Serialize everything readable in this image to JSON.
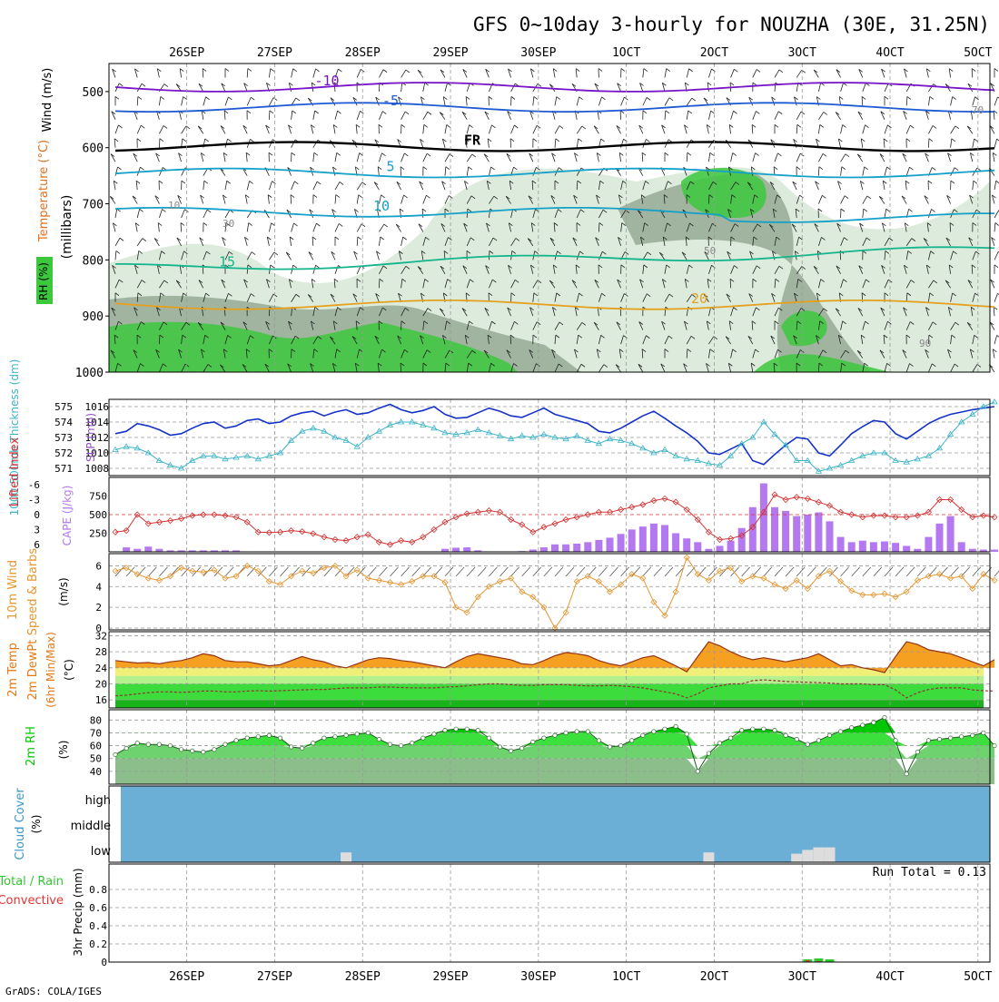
{
  "title": "GFS 0~10day 3-hourly for NOUZHA (30E, 31.25N)",
  "footer": "GrADS: COLA/IGES",
  "date_ticks": [
    "26SEP",
    "27SEP",
    "28SEP",
    "29SEP",
    "30SEP",
    "1OCT",
    "2OCT",
    "3OCT",
    "4OCT",
    "5OCT"
  ],
  "colors": {
    "rh_green": "#3cc83c",
    "rh_dark": "#a0b4a0",
    "rh_light": "#dcebdc",
    "temp_cold": "#7814c8",
    "temp_blue": "#1e5ad2",
    "temp_teal": "#14a0c8",
    "temp_green": "#14b48c",
    "temp_orange": "#e6a01e",
    "slp": "#1432c8",
    "thick": "#3cb4c8",
    "li": "#d23232",
    "cape": "#b478f0",
    "wind": "#e69632",
    "temp2m": "#e67814",
    "dew": "#963232",
    "rh2m": "#00c800",
    "cloud": "#6baed6",
    "precip_total": "#32c832",
    "precip_conv": "#e63232"
  },
  "chart_data": [
    {
      "type": "heatmap",
      "panel": "upper-air",
      "ylabels": [
        "Wind (m/s)",
        "Temperature (°C)",
        "RH (%)",
        "(millibars)"
      ],
      "yticks": [
        500,
        600,
        700,
        800,
        900,
        1000
      ],
      "ylim": [
        1000,
        450
      ],
      "legend_rh": "RH (%)",
      "isotherms": [
        {
          "label": "-10",
          "pressure": 492
        },
        {
          "label": "-5",
          "pressure": 528
        },
        {
          "label": "FR",
          "pressure": 598
        },
        {
          "label": "5",
          "pressure": 645
        },
        {
          "label": "10",
          "pressure": 715
        },
        {
          "label": "15",
          "pressure": 815
        },
        {
          "label": "20",
          "pressure": 880
        }
      ],
      "rh_contour_labels": [
        "10",
        "30",
        "50",
        "70",
        "90"
      ]
    },
    {
      "type": "line",
      "panel": "slp-thickness",
      "ylabel_left": "1000-500mb Thickness (dm)",
      "ylabel_right": "SLP (mb)",
      "thickness_ticks": [
        571,
        572,
        573,
        574,
        575
      ],
      "slp_ticks": [
        1008,
        1010,
        1012,
        1014,
        1016
      ],
      "slp": [
        1012.5,
        1012.8,
        1013.8,
        1013.5,
        1013.0,
        1012.3,
        1012.5,
        1013.2,
        1013.8,
        1014.0,
        1013.2,
        1013.5,
        1014.2,
        1014.4,
        1013.8,
        1014.0,
        1014.8,
        1015.2,
        1015.4,
        1014.8,
        1015.3,
        1015.6,
        1015.0,
        1015.2,
        1015.8,
        1016.3,
        1015.6,
        1015.2,
        1015.5,
        1016.0,
        1015.0,
        1014.5,
        1014.6,
        1015.2,
        1015.8,
        1015.4,
        1014.8,
        1014.6,
        1015.2,
        1015.8,
        1015.0,
        1014.6,
        1014.2,
        1013.8,
        1012.8,
        1012.6,
        1013.2,
        1014.0,
        1014.8,
        1015.4,
        1014.5,
        1013.5,
        1012.6,
        1011.5,
        1010.0,
        1009.8,
        1010.5,
        1011.2,
        1009.0,
        1008.5,
        1009.8,
        1011.0,
        1012.0,
        1011.8,
        1010.0,
        1009.6,
        1011.0,
        1012.5,
        1013.4,
        1014.2,
        1014.0,
        1012.5,
        1011.8,
        1012.8,
        1013.8,
        1014.5,
        1015.0,
        1015.3,
        1015.6,
        1015.8,
        1016.0
      ],
      "thickness": [
        572.2,
        572.4,
        572.3,
        572.0,
        571.5,
        571.2,
        571.0,
        571.5,
        571.8,
        571.8,
        571.6,
        571.7,
        571.8,
        571.6,
        571.8,
        572.0,
        572.8,
        573.4,
        573.6,
        573.4,
        573.0,
        572.8,
        572.4,
        573.0,
        573.4,
        573.8,
        574.0,
        574.0,
        573.8,
        573.6,
        573.3,
        573.2,
        573.3,
        573.5,
        573.3,
        573.1,
        572.9,
        573.1,
        573.0,
        573.2,
        573.0,
        572.9,
        573.1,
        572.8,
        572.6,
        572.9,
        572.8,
        572.6,
        572.3,
        572.0,
        572.2,
        571.8,
        571.6,
        571.5,
        571.3,
        571.2,
        571.8,
        572.6,
        573.0,
        574.0,
        573.2,
        572.5,
        571.5,
        571.5,
        570.8,
        571.0,
        571.2,
        571.5,
        571.8,
        572.0,
        572.0,
        571.5,
        571.4,
        571.6,
        571.8,
        572.3,
        573.2,
        574.0,
        574.5,
        575.0,
        575.3
      ]
    },
    {
      "type": "bar",
      "panel": "lifted-index-cape",
      "ylabel_left": "Lifted Index",
      "ylabel_right": "CAPE (J/kg)",
      "li_ticks": [
        -6,
        -3,
        0,
        3,
        6
      ],
      "cape_ticks": [
        250,
        500,
        750
      ],
      "lifted_index": [
        3.5,
        3.2,
        0.0,
        1.8,
        1.5,
        1.2,
        0.8,
        0.2,
        0.0,
        0.0,
        0.2,
        0.5,
        1.5,
        3.5,
        3.6,
        3.5,
        3.2,
        3.4,
        3.8,
        4.5,
        5.0,
        5.2,
        4.5,
        4.0,
        5.5,
        6.0,
        5.2,
        5.5,
        4.5,
        3.0,
        1.5,
        0.5,
        -0.2,
        -0.5,
        -0.8,
        -0.5,
        1.0,
        2.0,
        3.5,
        2.5,
        1.8,
        1.0,
        0.5,
        0.0,
        -0.5,
        -0.5,
        -1.0,
        -1.5,
        -2.0,
        -2.8,
        -3.2,
        -2.5,
        -1.0,
        1.0,
        3.5,
        5.0,
        4.8,
        4.2,
        2.5,
        -0.5,
        -4.0,
        -3.0,
        -3.5,
        -3.2,
        -2.5,
        -1.8,
        -0.5,
        0.0,
        0.5,
        0.2,
        0.2,
        0.5,
        0.5,
        0.2,
        -0.5,
        -3.0,
        -3.0,
        -1.0,
        0.5,
        0.2,
        0.5
      ],
      "cape": [
        0,
        60,
        40,
        70,
        40,
        20,
        20,
        20,
        20,
        20,
        20,
        20,
        0,
        0,
        0,
        0,
        0,
        0,
        0,
        0,
        0,
        0,
        0,
        0,
        0,
        0,
        0,
        0,
        0,
        0,
        40,
        55,
        60,
        20,
        0,
        0,
        0,
        10,
        30,
        60,
        100,
        100,
        110,
        130,
        160,
        190,
        240,
        300,
        340,
        380,
        360,
        250,
        180,
        130,
        40,
        80,
        150,
        320,
        600,
        920,
        600,
        550,
        480,
        500,
        530,
        410,
        200,
        130,
        150,
        130,
        140,
        120,
        80,
        40,
        200,
        380,
        480,
        130,
        40,
        30,
        30
      ]
    },
    {
      "type": "line",
      "panel": "10m-wind",
      "ylabel": "10m Wind Speed & Barbs (m/s)",
      "yticks": [
        0,
        2,
        4,
        6
      ],
      "ylim": [
        0,
        7
      ],
      "wind_speed": [
        5.5,
        5.8,
        5.2,
        4.8,
        4.6,
        5.0,
        5.8,
        5.5,
        5.4,
        5.6,
        4.8,
        5.0,
        6.0,
        5.5,
        4.5,
        4.2,
        5.0,
        5.5,
        5.3,
        5.8,
        6.0,
        5.0,
        5.6,
        4.8,
        4.6,
        4.4,
        4.2,
        4.5,
        5.0,
        5.0,
        4.4,
        2.0,
        1.5,
        3.0,
        4.0,
        4.5,
        4.8,
        3.5,
        3.0,
        2.0,
        0.0,
        1.5,
        4.5,
        5.0,
        4.5,
        3.5,
        4.2,
        5.2,
        4.8,
        2.5,
        1.2,
        3.5,
        6.8,
        5.2,
        4.6,
        5.5,
        5.8,
        4.5,
        5.0,
        4.8,
        4.2,
        3.8,
        4.6,
        3.8,
        5.0,
        5.5,
        4.5,
        3.6,
        3.2,
        3.2,
        3.3,
        3.0,
        3.5,
        4.6,
        5.0,
        5.2,
        4.8,
        5.0,
        3.8,
        5.2,
        4.6
      ]
    },
    {
      "type": "area",
      "panel": "2m-temp",
      "ylabel": "2m Temp 2m DewPt (6hr Min/Max) (°C)",
      "yticks": [
        16,
        20,
        24,
        28,
        32
      ],
      "ylim": [
        14,
        33
      ],
      "temp2m": [
        25.8,
        25.5,
        25.2,
        25.3,
        25.0,
        25.5,
        25.8,
        26.5,
        27.5,
        27.0,
        25.8,
        25.5,
        25.5,
        25.0,
        24.5,
        24.8,
        25.8,
        26.8,
        26.0,
        25.5,
        24.5,
        24.0,
        25.0,
        26.0,
        26.5,
        26.3,
        25.8,
        25.5,
        25.0,
        24.5,
        24.0,
        25.5,
        26.8,
        27.5,
        27.0,
        26.5,
        26.0,
        25.0,
        24.8,
        25.8,
        27.0,
        27.8,
        27.5,
        27.0,
        25.8,
        25.0,
        24.5,
        25.5,
        26.5,
        27.0,
        25.8,
        24.5,
        23.0,
        26.8,
        30.5,
        29.5,
        28.0,
        26.8,
        26.0,
        26.5,
        26.0,
        25.5,
        26.0,
        26.5,
        27.5,
        26.0,
        24.5,
        24.8,
        24.0,
        23.5,
        22.8,
        26.8,
        30.5,
        29.8,
        28.5,
        28.0,
        27.5,
        26.5,
        25.5,
        24.5,
        26.0
      ],
      "dewpoint": [
        17.0,
        17.2,
        17.5,
        17.8,
        18.0,
        18.0,
        17.9,
        18.0,
        18.2,
        18.2,
        18.0,
        18.0,
        18.2,
        18.3,
        18.2,
        18.3,
        18.4,
        18.5,
        18.6,
        18.6,
        18.8,
        19.0,
        19.0,
        19.0,
        19.2,
        19.2,
        19.1,
        19.0,
        19.0,
        19.0,
        19.2,
        19.3,
        19.5,
        19.8,
        20.0,
        20.0,
        19.8,
        19.6,
        19.6,
        19.8,
        19.8,
        19.8,
        19.6,
        19.5,
        19.5,
        19.6,
        19.5,
        19.3,
        19.0,
        18.5,
        18.0,
        17.5,
        16.5,
        17.5,
        19.0,
        19.5,
        20.0,
        20.0,
        20.8,
        21.0,
        20.8,
        20.6,
        20.5,
        20.4,
        20.3,
        20.2,
        20.0,
        20.0,
        20.0,
        19.8,
        19.8,
        18.5,
        16.5,
        17.8,
        18.6,
        19.0,
        19.0,
        19.0,
        18.5,
        18.3,
        18.2
      ]
    },
    {
      "type": "area",
      "panel": "2m-rh",
      "ylabel": "2m RH (%)",
      "yticks": [
        40,
        50,
        60,
        70,
        80
      ],
      "ylim": [
        30,
        88
      ],
      "rh2m": [
        53,
        58,
        62,
        61,
        61,
        60,
        57,
        56,
        55,
        57,
        61,
        64,
        66,
        67,
        68,
        66,
        59,
        58,
        62,
        66,
        67,
        68,
        69,
        70,
        65,
        61,
        60,
        62,
        66,
        69,
        72,
        73,
        73,
        72,
        66,
        59,
        56,
        58,
        63,
        66,
        68,
        70,
        71,
        71,
        64,
        59,
        60,
        64,
        68,
        71,
        73,
        75,
        69,
        40,
        54,
        62,
        66,
        72,
        73,
        73,
        72,
        68,
        65,
        61,
        64,
        68,
        71,
        74,
        76,
        78,
        82,
        64,
        38,
        55,
        64,
        65,
        66,
        67,
        68,
        70,
        60
      ]
    },
    {
      "type": "area",
      "panel": "cloud-cover",
      "ylabel": "Cloud Cover (%)",
      "levels": [
        "high",
        "middle",
        "low"
      ],
      "low_cloud_pct": [
        0,
        0,
        0,
        0,
        0,
        0,
        0,
        0,
        0,
        0,
        0,
        0,
        0,
        0,
        0,
        0,
        0,
        0,
        0,
        0,
        0,
        10,
        0,
        0,
        0,
        0,
        0,
        0,
        0,
        0,
        0,
        0,
        0,
        0,
        0,
        0,
        0,
        0,
        0,
        0,
        0,
        0,
        0,
        0,
        0,
        0,
        0,
        0,
        0,
        0,
        0,
        0,
        0,
        0,
        10,
        0,
        0,
        0,
        0,
        0,
        0,
        0,
        5,
        20,
        30,
        30,
        0,
        0,
        0,
        0,
        0,
        0,
        0,
        0,
        0,
        0,
        0,
        0,
        0,
        0,
        0
      ]
    },
    {
      "type": "bar",
      "panel": "precip",
      "ylabel": "3hr Precip (mm)",
      "legend": [
        "Total / Rain",
        "Convective"
      ],
      "yticks": [
        0,
        0.2,
        0.4,
        0.6,
        0.8
      ],
      "ylim": [
        0,
        1.0
      ],
      "annotation": "Run Total = 0.13",
      "precip_total": [
        0,
        0,
        0,
        0,
        0,
        0,
        0,
        0,
        0,
        0,
        0,
        0,
        0,
        0,
        0,
        0,
        0,
        0,
        0,
        0,
        0,
        0,
        0,
        0,
        0,
        0,
        0,
        0,
        0,
        0,
        0,
        0,
        0,
        0,
        0,
        0,
        0,
        0,
        0,
        0,
        0,
        0,
        0,
        0,
        0,
        0,
        0,
        0,
        0,
        0,
        0,
        0,
        0,
        0,
        0,
        0,
        0,
        0,
        0,
        0,
        0,
        0,
        0,
        0.03,
        0.04,
        0.03,
        0,
        0,
        0,
        0,
        0,
        0,
        0,
        0,
        0,
        0,
        0,
        0,
        0,
        0,
        0
      ],
      "precip_conv": [
        0,
        0,
        0,
        0,
        0,
        0,
        0,
        0,
        0,
        0,
        0,
        0,
        0,
        0,
        0,
        0,
        0,
        0,
        0,
        0,
        0,
        0,
        0,
        0,
        0,
        0,
        0,
        0,
        0,
        0,
        0,
        0,
        0,
        0,
        0,
        0,
        0,
        0,
        0,
        0,
        0,
        0,
        0,
        0,
        0,
        0,
        0,
        0,
        0,
        0,
        0,
        0,
        0,
        0,
        0,
        0,
        0,
        0,
        0,
        0,
        0,
        0,
        0,
        0.02,
        0.01,
        0,
        0,
        0,
        0,
        0,
        0,
        0,
        0,
        0,
        0,
        0,
        0,
        0,
        0,
        0,
        0
      ]
    }
  ]
}
